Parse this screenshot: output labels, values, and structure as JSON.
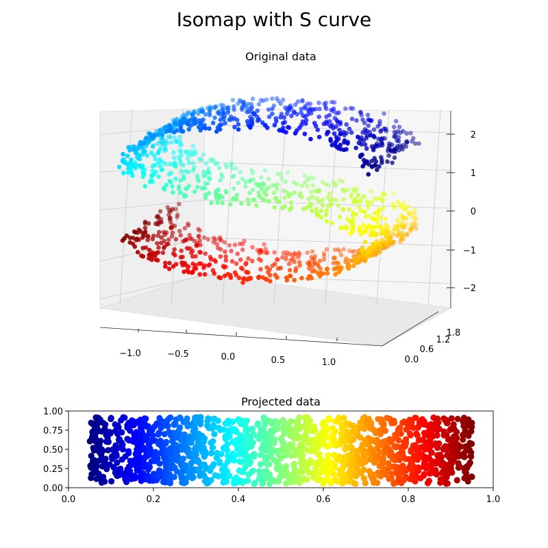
{
  "figure": {
    "suptitle": "Isomap with S curve"
  },
  "chart_data": [
    {
      "type": "scatter",
      "subtype": "3d",
      "title": "Original data",
      "colormap": "jet",
      "color_by": "position along the S manifold (t)",
      "x_ticks": [
        "−1.0",
        "−0.5",
        "0.0",
        "0.5",
        "1.0"
      ],
      "y_ticks": [
        "0.0",
        "0.6",
        "1.2",
        "1.8"
      ],
      "z_ticks": [
        "−2",
        "−1",
        "0",
        "1",
        "2"
      ],
      "xlim": [
        -1.1,
        1.1
      ],
      "ylim": [
        0,
        2
      ],
      "zlim": [
        -2.3,
        2.3
      ],
      "manifold": "S curve: x = sin(t), z = sign(t)·(cos(t) − 1), y in [0, 2], t in [−4.7, 4.7]",
      "n_points": 1500,
      "grid": true
    },
    {
      "type": "scatter",
      "title": "Projected data",
      "colormap": "jet",
      "x_ticks": [
        "0.0",
        "0.2",
        "0.4",
        "0.6",
        "0.8",
        "1.0"
      ],
      "y_ticks": [
        "0.00",
        "0.25",
        "0.50",
        "0.75",
        "1.00"
      ],
      "xlim": [
        0,
        1
      ],
      "ylim": [
        0,
        1
      ],
      "x_range_of_points": [
        0.05,
        0.95
      ],
      "y_range_of_points": [
        0.05,
        0.92
      ],
      "n_points": 1500,
      "grid": false
    }
  ]
}
